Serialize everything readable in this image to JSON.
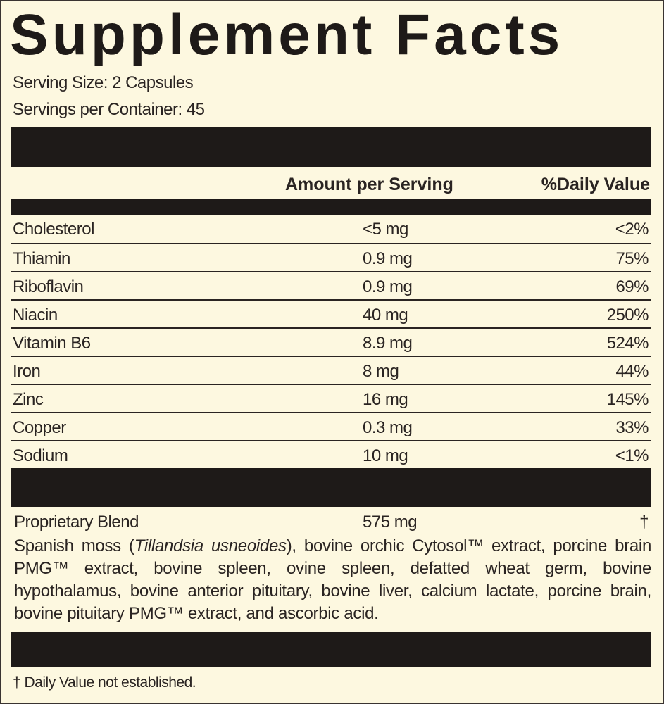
{
  "header": {
    "title": "Supplement Facts",
    "serving_size": "Serving Size: 2 Capsules",
    "servings_per_container": "Servings per Container: 45"
  },
  "table": {
    "columns": [
      "Amount per Serving",
      "%Daily Value"
    ],
    "rows": [
      [
        "Cholesterol",
        "<5 mg",
        "<2%"
      ],
      [
        "Thiamin",
        "0.9 mg",
        "75%"
      ],
      [
        "Riboflavin",
        "0.9 mg",
        "69%"
      ],
      [
        "Niacin",
        "40 mg",
        "250%"
      ],
      [
        "Vitamin B6",
        "8.9 mg",
        "524%"
      ],
      [
        "Iron",
        "8 mg",
        "44%"
      ],
      [
        "Zinc",
        "16 mg",
        "145%"
      ],
      [
        "Copper",
        "0.3 mg",
        "33%"
      ],
      [
        "Sodium",
        "10 mg",
        "<1%"
      ]
    ]
  },
  "blend": {
    "name": "Proprietary Blend",
    "amount": "575 mg",
    "daily_value": "†",
    "ingredients": {
      "before": "Spanish moss (",
      "italic": "Tillandsia usneoides",
      "after": "), bovine orchic Cytosol™ extract, porcine brain PMG™ extract, bovine spleen, ovine spleen, defatted wheat germ, bovine hypothalamus, bovine anterior pituitary, bovine liver, calcium lactate, porcine brain, bovine pituitary PMG™ extract, and ascorbic acid."
    }
  },
  "footnote": "† Daily Value not established."
}
